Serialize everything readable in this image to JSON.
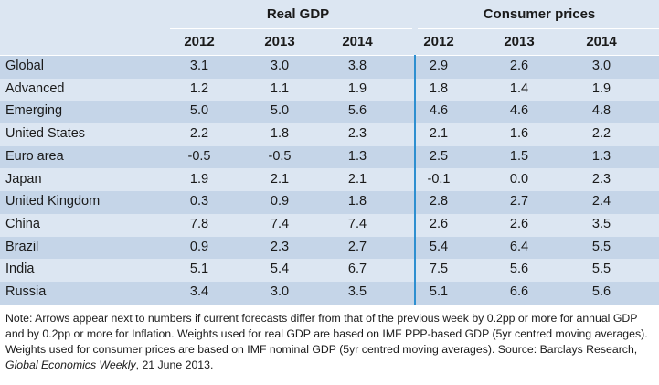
{
  "groups": {
    "gdp": "Real GDP",
    "cpi": "Consumer prices"
  },
  "years": [
    "2012",
    "2013",
    "2014",
    "2012",
    "2013",
    "2014"
  ],
  "rows": [
    {
      "name": "Global",
      "v": [
        "3.1",
        "3.0",
        "3.8",
        "2.9",
        "2.6",
        "3.0"
      ]
    },
    {
      "name": "Advanced",
      "v": [
        "1.2",
        "1.1",
        "1.9",
        "1.8",
        "1.4",
        "1.9"
      ]
    },
    {
      "name": "Emerging",
      "v": [
        "5.0",
        "5.0",
        "5.6",
        "4.6",
        "4.6",
        "4.8"
      ]
    },
    {
      "name": "United States",
      "v": [
        "2.2",
        "1.8",
        "2.3",
        "2.1",
        "1.6",
        "2.2"
      ]
    },
    {
      "name": "Euro area",
      "v": [
        "-0.5",
        "-0.5",
        "1.3",
        "2.5",
        "1.5",
        "1.3"
      ]
    },
    {
      "name": "Japan",
      "v": [
        "1.9",
        "2.1",
        "2.1",
        "-0.1",
        "0.0",
        "2.3"
      ]
    },
    {
      "name": "United Kingdom",
      "v": [
        "0.3",
        "0.9",
        "1.8",
        "2.8",
        "2.7",
        "2.4"
      ]
    },
    {
      "name": "China",
      "v": [
        "7.8",
        "7.4",
        "7.4",
        "2.6",
        "2.6",
        "3.5"
      ]
    },
    {
      "name": "Brazil",
      "v": [
        "0.9",
        "2.3",
        "2.7",
        "5.4",
        "6.4",
        "5.5"
      ]
    },
    {
      "name": "India",
      "v": [
        "5.1",
        "5.4",
        "6.7",
        "7.5",
        "5.6",
        "5.5"
      ]
    },
    {
      "name": "Russia",
      "v": [
        "3.4",
        "3.0",
        "3.5",
        "5.1",
        "6.6",
        "5.6"
      ]
    }
  ],
  "note": {
    "text_before": "Note: Arrows appear next to numbers if current forecasts differ from that of the previous week by 0.2pp or more for annual GDP and by 0.2pp or more for Inflation. Weights used for real GDP are based on IMF PPP-based GDP (5yr centred moving averages). Weights used for consumer prices are based on IMF nominal GDP (5yr centred moving averages). Source: Barclays Research, ",
    "italic": "Global Economics Weekly",
    "text_after": ", 21 June 2013."
  },
  "colors": {
    "bg": "#dce6f2",
    "shade": "#c5d5e8",
    "divider": "#2e8fd0"
  }
}
